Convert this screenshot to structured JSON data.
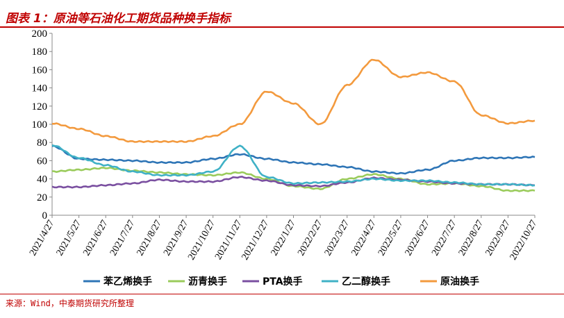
{
  "header": {
    "title": "图表 1：原油等石油化工期货品种换手指标"
  },
  "footer": {
    "source": "来源：Wind，中泰期货研究所整理"
  },
  "chart_data": {
    "type": "line",
    "title": "原油等石油化工期货品种换手指标",
    "xlabel": "",
    "ylabel": "",
    "ylim": [
      0,
      200
    ],
    "yticks": [
      0,
      20,
      40,
      60,
      80,
      100,
      120,
      140,
      160,
      180,
      200
    ],
    "grid": false,
    "legend_position": "bottom",
    "x": [
      "2021/4/27",
      "2021/5/27",
      "2021/6/27",
      "2021/7/27",
      "2021/8/27",
      "2021/9/27",
      "2021/10/27",
      "2021/11/27",
      "2021/12/27",
      "2022/1/27",
      "2022/2/27",
      "2022/3/27",
      "2022/4/27",
      "2022/5/27",
      "2022/6/27",
      "2022/7/27",
      "2022/8/27",
      "2022/9/27",
      "2022/10/27"
    ],
    "series": [
      {
        "name": "苯乙烯换手",
        "color": "#2e75b6",
        "values": [
          76,
          62,
          61,
          60,
          58,
          58,
          62,
          67,
          62,
          58,
          56,
          53,
          48,
          46,
          50,
          60,
          63,
          63,
          64
        ]
      },
      {
        "name": "沥青换手",
        "color": "#9acb5b",
        "values": [
          48,
          50,
          52,
          49,
          47,
          45,
          44,
          47,
          40,
          32,
          29,
          40,
          45,
          40,
          34,
          35,
          32,
          27,
          27
        ]
      },
      {
        "name": "PTA换手",
        "color": "#7a4fa0",
        "values": [
          31,
          31,
          33,
          35,
          39,
          37,
          37,
          42,
          38,
          33,
          32,
          36,
          41,
          39,
          37,
          35,
          34,
          34,
          33
        ]
      },
      {
        "name": "乙二醇换手",
        "color": "#3fb1c6",
        "values": [
          77,
          63,
          55,
          48,
          44,
          44,
          48,
          76,
          42,
          35,
          36,
          37,
          40,
          38,
          38,
          36,
          34,
          34,
          33
        ]
      },
      {
        "name": "原油换手",
        "color": "#f39a3e",
        "values": [
          101,
          95,
          87,
          81,
          81,
          81,
          87,
          100,
          136,
          123,
          100,
          143,
          171,
          152,
          157,
          147,
          110,
          101,
          104
        ]
      }
    ]
  }
}
